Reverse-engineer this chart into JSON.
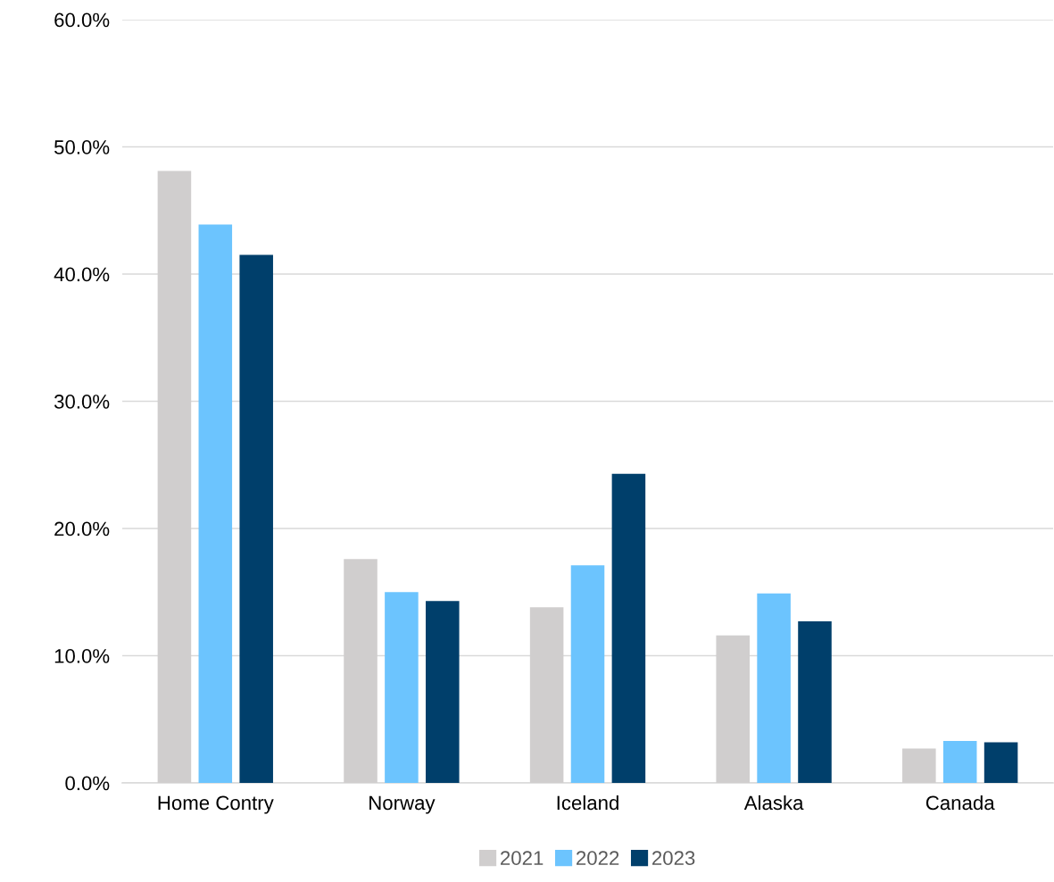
{
  "chart_data": {
    "type": "bar",
    "categories": [
      "Home Contry",
      "Norway",
      "Iceland",
      "Alaska",
      "Canada"
    ],
    "series": [
      {
        "name": "2021",
        "color": "#d0cece",
        "values": [
          48.1,
          17.6,
          13.8,
          11.6,
          2.7
        ]
      },
      {
        "name": "2022",
        "color": "#6cc4fe",
        "values": [
          43.9,
          15.0,
          17.1,
          14.9,
          3.3
        ]
      },
      {
        "name": "2023",
        "color": "#003f6b",
        "values": [
          41.5,
          14.3,
          24.3,
          12.7,
          3.2
        ]
      }
    ],
    "ylim": [
      0,
      60
    ],
    "yticks": [
      {
        "value": 0,
        "label": "0.0%"
      },
      {
        "value": 10,
        "label": "10.0%"
      },
      {
        "value": 20,
        "label": "20.0%"
      },
      {
        "value": 30,
        "label": "30.0%"
      },
      {
        "value": 40,
        "label": "40.0%"
      },
      {
        "value": 50,
        "label": "50.0%"
      },
      {
        "value": 60,
        "label": "60.0%"
      }
    ],
    "grid": "y",
    "legend": "bottom"
  }
}
